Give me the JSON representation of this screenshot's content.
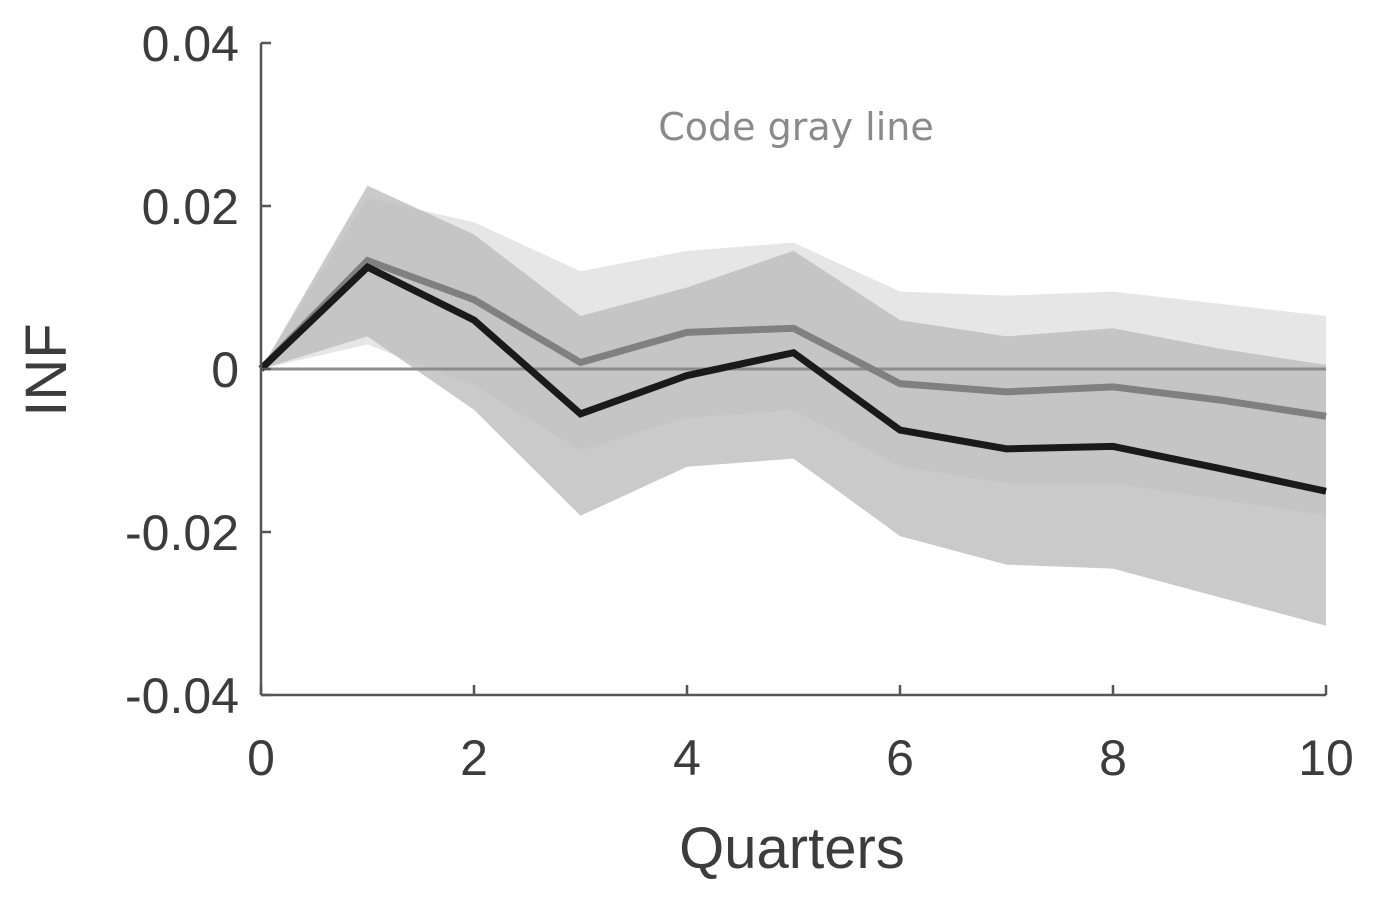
{
  "chart_data": {
    "type": "line",
    "title": "",
    "xlabel": "Quarters",
    "ylabel": "INF",
    "xlim": [
      0,
      10
    ],
    "ylim": [
      -0.04,
      0.04
    ],
    "x_ticks": [
      0,
      2,
      4,
      6,
      8,
      10
    ],
    "x_tick_labels": [
      "0",
      "2",
      "4",
      "6",
      "8",
      "10"
    ],
    "y_ticks": [
      0.04,
      0.02,
      0,
      -0.02,
      -0.04
    ],
    "y_tick_labels": [
      "0.04",
      "0.02",
      "0",
      "-0.02",
      "-0.04"
    ],
    "grid": false,
    "annotation": "Code gray line",
    "x": [
      0,
      1,
      2,
      3,
      4,
      5,
      6,
      7,
      8,
      9,
      10
    ],
    "series": [
      {
        "values": [
          0,
          0.0133,
          0.0085,
          0.0008,
          0.0045,
          0.005,
          -0.0018,
          -0.0028,
          -0.0022,
          -0.0038,
          -0.0058
        ],
        "color": "#808080",
        "band": {
          "lower": [
            0,
            0.003,
            -0.002,
            -0.01,
            -0.006,
            -0.005,
            -0.012,
            -0.014,
            -0.014,
            -0.016,
            -0.018
          ],
          "upper": [
            0,
            0.021,
            0.018,
            0.012,
            0.0145,
            0.0155,
            0.0095,
            0.009,
            0.0095,
            0.008,
            0.0065
          ],
          "color": "#e6e6e6"
        }
      },
      {
        "values": [
          0,
          0.0125,
          0.006,
          -0.0055,
          -0.0008,
          0.002,
          -0.0075,
          -0.0098,
          -0.0095,
          -0.0122,
          -0.015
        ],
        "color": "#1a1a1a",
        "band": {
          "lower": [
            0,
            0.004,
            -0.005,
            -0.018,
            -0.012,
            -0.011,
            -0.0205,
            -0.024,
            -0.0245,
            -0.028,
            -0.0315
          ],
          "upper": [
            0,
            0.0225,
            0.0165,
            0.0065,
            0.01,
            0.0145,
            0.006,
            0.004,
            0.005,
            0.0025,
            0.0005
          ],
          "color": "#bdbdbd"
        }
      }
    ],
    "zero_line": {
      "y": 0,
      "color": "#8c8c8c"
    }
  }
}
